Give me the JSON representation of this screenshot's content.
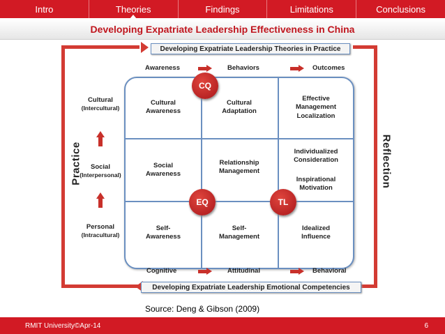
{
  "nav": {
    "tabs": [
      {
        "label": "Intro"
      },
      {
        "label": "Theories",
        "active": true
      },
      {
        "label": "Findings"
      },
      {
        "label": "Limitations"
      },
      {
        "label": "Conclusions"
      }
    ]
  },
  "slide": {
    "title": "Developing Expatriate Leadership Effectiveness in China"
  },
  "diagram": {
    "top_banner": "Developing Expatriate Leadership Theories in Practice",
    "bottom_banner": "Developing Expatriate Leadership Emotional Competencies",
    "left_label": "Practice",
    "right_label": "Reflection",
    "top_flow": [
      "Awareness",
      "Behaviors",
      "Outcomes"
    ],
    "bottom_flow": [
      "Cognitive",
      "Attitudinal",
      "Behavioral"
    ],
    "levels": [
      {
        "main": "Cultural",
        "sub": "(Intercultural)"
      },
      {
        "main": "Social",
        "sub": "(Interpersonal)"
      },
      {
        "main": "Personal",
        "sub": "(Intracultural)"
      }
    ],
    "cells": {
      "r1c1": "Cultural\nAwareness",
      "r1c2": "Cultural\nAdaptation",
      "r1c3": "Effective\nManagement\nLocalization",
      "r2c1": "Social\nAwareness",
      "r2c2": "Relationship\nManagement",
      "r2c3a": "Individualized\nConsideration",
      "r2c3b": "Inspirational\nMotivation",
      "r3c1": "Self-\nAwareness",
      "r3c2": "Self-\nManagement",
      "r3c3": "Idealized\nInfluence"
    },
    "circles": {
      "cq": "CQ",
      "eq": "EQ",
      "tl": "TL"
    },
    "accent_color": "#d33b33",
    "grid_border_color": "#6a8fc0"
  },
  "source": "Source: Deng & Gibson (2009)",
  "footer": {
    "left": "RMIT University©Apr-14",
    "page_number": "6"
  }
}
